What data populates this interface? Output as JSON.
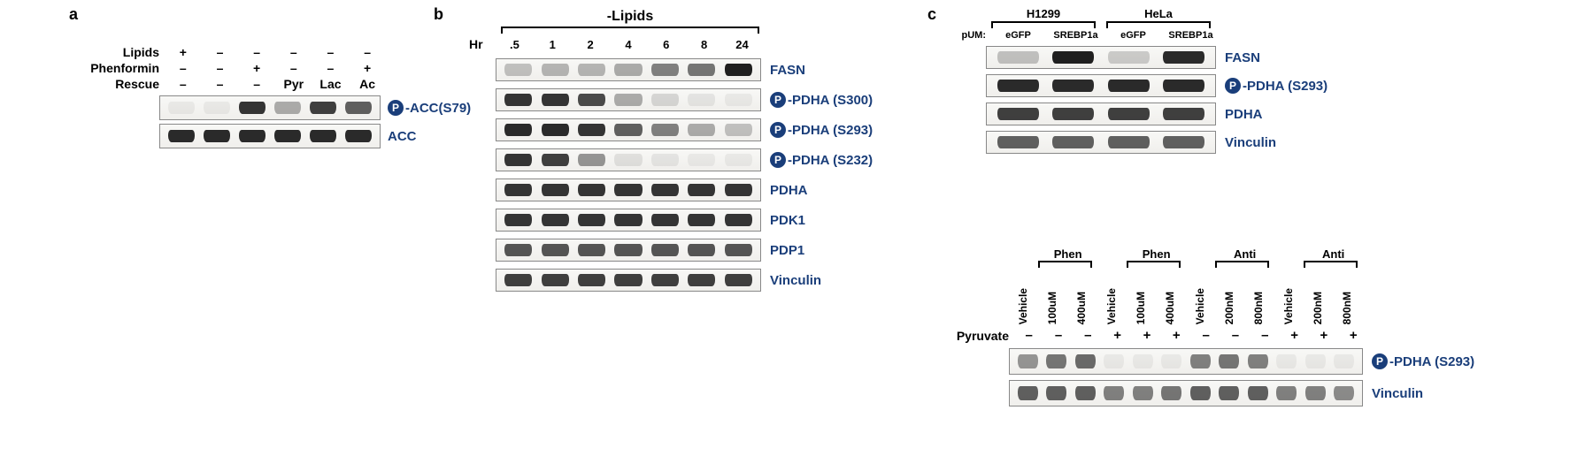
{
  "panelA": {
    "letter": "a",
    "rows": [
      {
        "name": "Lipids",
        "vals": [
          "+",
          "–",
          "–",
          "–",
          "–",
          "–"
        ]
      },
      {
        "name": "Phenformin",
        "vals": [
          "–",
          "–",
          "+",
          "–",
          "–",
          "+"
        ]
      },
      {
        "name": "Rescue",
        "vals": [
          "–",
          "–",
          "–",
          "Pyr",
          "Lac",
          "Ac"
        ]
      }
    ],
    "blots": [
      {
        "label": "-ACC(S79)",
        "phospho": true,
        "intensity": [
          0.05,
          0.05,
          0.9,
          0.35,
          0.85,
          0.7
        ]
      },
      {
        "label": "ACC",
        "phospho": false,
        "intensity": [
          0.95,
          0.95,
          0.95,
          0.95,
          0.95,
          0.95
        ]
      }
    ],
    "style": {
      "lane_width": 38,
      "blot_width": 250,
      "blot_height": 28,
      "colors": {
        "band": "#2b2b2b",
        "blot_bg": "#f4f3ef",
        "label": "#1a3e7a"
      }
    }
  },
  "panelB": {
    "letter": "b",
    "title": "-Lipids",
    "hr_label": "Hr",
    "hrs": [
      ".5",
      "1",
      "2",
      "4",
      "6",
      "8",
      "24"
    ],
    "blots": [
      {
        "label": "FASN",
        "phospho": false,
        "intensity": [
          0.25,
          0.3,
          0.3,
          0.35,
          0.55,
          0.6,
          1.0
        ]
      },
      {
        "label": "-PDHA (S300)",
        "phospho": true,
        "intensity": [
          0.9,
          0.9,
          0.8,
          0.35,
          0.15,
          0.08,
          0.05
        ]
      },
      {
        "label": "-PDHA (S293)",
        "phospho": true,
        "intensity": [
          0.95,
          0.95,
          0.9,
          0.7,
          0.55,
          0.35,
          0.25
        ]
      },
      {
        "label": "-PDHA (S232)",
        "phospho": true,
        "intensity": [
          0.9,
          0.85,
          0.45,
          0.1,
          0.08,
          0.05,
          0.05
        ]
      },
      {
        "label": "PDHA",
        "phospho": false,
        "intensity": [
          0.9,
          0.9,
          0.9,
          0.9,
          0.9,
          0.9,
          0.9
        ]
      },
      {
        "label": "PDK1",
        "phospho": false,
        "intensity": [
          0.9,
          0.9,
          0.9,
          0.9,
          0.9,
          0.9,
          0.9
        ]
      },
      {
        "label": "PDP1",
        "phospho": false,
        "intensity": [
          0.75,
          0.75,
          0.75,
          0.75,
          0.75,
          0.75,
          0.75
        ]
      },
      {
        "label": "Vinculin",
        "phospho": false,
        "intensity": [
          0.85,
          0.85,
          0.85,
          0.85,
          0.85,
          0.85,
          0.85
        ]
      }
    ],
    "style": {
      "lane_width": 40,
      "blot_width": 300,
      "blot_height": 26,
      "row_gap": 8
    }
  },
  "panelC_top": {
    "letter": "c",
    "pUM_label": "pUM:",
    "cells": [
      "H1299",
      "HeLa"
    ],
    "constructs": [
      "eGFP",
      "SREBP1a",
      "eGFP",
      "SREBP1a"
    ],
    "blots": [
      {
        "label": "FASN",
        "phospho": false,
        "intensity": [
          0.25,
          1.0,
          0.2,
          0.95
        ]
      },
      {
        "label": "-PDHA (S293)",
        "phospho": true,
        "intensity": [
          0.95,
          0.95,
          0.95,
          0.95
        ]
      },
      {
        "label": "PDHA",
        "phospho": false,
        "intensity": [
          0.85,
          0.85,
          0.85,
          0.85
        ]
      },
      {
        "label": "Vinculin",
        "phospho": false,
        "intensity": [
          0.7,
          0.7,
          0.7,
          0.7
        ]
      }
    ],
    "style": {
      "lane_width": 60,
      "blot_width": 260,
      "blot_height": 26
    }
  },
  "panelC_bottom": {
    "groups": [
      "Phen",
      "Phen",
      "Anti",
      "Anti"
    ],
    "lanes": [
      {
        "top": "Vehicle",
        "dose": "",
        "pyr": "–"
      },
      {
        "top": "100uM",
        "dose": "",
        "pyr": "–"
      },
      {
        "top": "400uM",
        "dose": "",
        "pyr": "–"
      },
      {
        "top": "Vehicle",
        "dose": "",
        "pyr": "+"
      },
      {
        "top": "100uM",
        "dose": "",
        "pyr": "+"
      },
      {
        "top": "400uM",
        "dose": "",
        "pyr": "+"
      },
      {
        "top": "Vehicle",
        "dose": "",
        "pyr": "–"
      },
      {
        "top": "200nM",
        "dose": "",
        "pyr": "–"
      },
      {
        "top": "800nM",
        "dose": "",
        "pyr": "–"
      },
      {
        "top": "Vehicle",
        "dose": "",
        "pyr": "+"
      },
      {
        "top": "200nM",
        "dose": "",
        "pyr": "+"
      },
      {
        "top": "800nM",
        "dose": "",
        "pyr": "+"
      }
    ],
    "pyr_label": "Pyruvate",
    "blots": [
      {
        "label": "-PDHA (S293)",
        "phospho": true,
        "intensity": [
          0.45,
          0.6,
          0.65,
          0.03,
          0.03,
          0.03,
          0.55,
          0.6,
          0.55,
          0.02,
          0.02,
          0.02
        ]
      },
      {
        "label": "Vinculin",
        "phospho": false,
        "intensity": [
          0.7,
          0.7,
          0.7,
          0.55,
          0.55,
          0.6,
          0.7,
          0.7,
          0.7,
          0.55,
          0.55,
          0.5
        ]
      }
    ],
    "style": {
      "lane_width": 30,
      "blot_width": 400,
      "blot_height": 30
    }
  }
}
